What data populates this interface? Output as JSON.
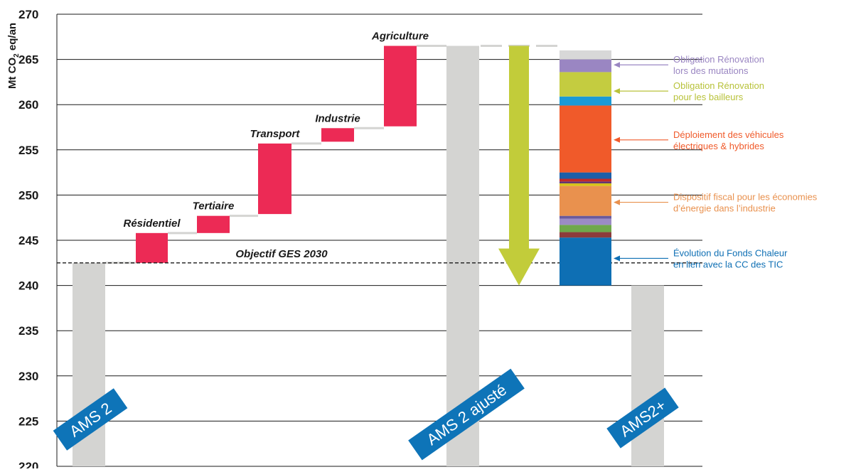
{
  "chart_data": {
    "type": "waterfall",
    "ylabel_main": "Mt CO",
    "ylabel_sub": "2",
    "ylabel_tail": " eq/an",
    "ylim": [
      220,
      270
    ],
    "yticks": [
      220,
      225,
      230,
      235,
      240,
      245,
      250,
      255,
      260,
      265,
      270
    ],
    "grid": true,
    "target": {
      "label": "Objectif GES 2030",
      "value": 242.5
    },
    "totals": [
      {
        "name": "AMS 2",
        "value": 242.5
      },
      {
        "name": "AMS 2 ajusté",
        "value": 266.5
      },
      {
        "name": "AMS2+",
        "value": 240
      }
    ],
    "increments": [
      {
        "name": "Résidentiel",
        "from": 242.5,
        "to": 245.8
      },
      {
        "name": "Tertiaire",
        "from": 245.8,
        "to": 247.7
      },
      {
        "name": "Transport",
        "from": 247.9,
        "to": 255.7
      },
      {
        "name": "Industrie",
        "from": 255.9,
        "to": 257.4
      },
      {
        "name": "Agriculture",
        "from": 257.6,
        "to": 266.5
      }
    ],
    "reduction": {
      "from": 266.5,
      "to": 240
    },
    "stack": [
      {
        "from": 240.0,
        "to": 245.3,
        "color": "#0e6fb4"
      },
      {
        "from": 245.3,
        "to": 245.9,
        "color": "#8c3b3b"
      },
      {
        "from": 245.9,
        "to": 246.7,
        "color": "#6fa84b"
      },
      {
        "from": 246.7,
        "to": 247.4,
        "color": "#9b8bc4"
      },
      {
        "from": 247.4,
        "to": 247.7,
        "color": "#6a5a9c"
      },
      {
        "from": 247.7,
        "to": 251.0,
        "color": "#e9914e"
      },
      {
        "from": 251.0,
        "to": 251.3,
        "color": "#d6c21a"
      },
      {
        "from": 251.3,
        "to": 251.5,
        "color": "#5a2d6e"
      },
      {
        "from": 251.5,
        "to": 251.8,
        "color": "#c02a2a"
      },
      {
        "from": 251.8,
        "to": 252.5,
        "color": "#1c5fa8"
      },
      {
        "from": 252.5,
        "to": 259.9,
        "color": "#f05a2a"
      },
      {
        "from": 259.9,
        "to": 260.9,
        "color": "#1a9ad6"
      },
      {
        "from": 260.9,
        "to": 263.6,
        "color": "#c4cc40"
      },
      {
        "from": 263.6,
        "to": 265.0,
        "color": "#9a86c2"
      },
      {
        "from": 265.0,
        "to": 266.0,
        "color": "#d8d8d8"
      }
    ],
    "annotations": [
      {
        "lines": [
          "Obligation Rénovation",
          "lors des mutations"
        ],
        "value": 264.4,
        "color": "#9a86c2"
      },
      {
        "lines": [
          "Obligation Rénovation",
          "pour les bailleurs"
        ],
        "value": 261.5,
        "color": "#b8c23a"
      },
      {
        "lines": [
          "Déploiement des véhicules",
          "électriques & hybrides"
        ],
        "value": 256.1,
        "color": "#f05a2a"
      },
      {
        "lines": [
          "Dispositif fiscal pour les économies",
          "d’énergie dans l’industrie"
        ],
        "value": 249.2,
        "color": "#e9914e"
      },
      {
        "lines": [
          "Évolution du Fonds Chaleur",
          "en lien avec la CC des TIC"
        ],
        "value": 243.0,
        "color": "#0e6fb4"
      }
    ],
    "colors": {
      "total": "#d4d4d2",
      "increment": "#ec2a55",
      "arrow": "#c2cc3a",
      "badge": "#0e74b8"
    }
  }
}
